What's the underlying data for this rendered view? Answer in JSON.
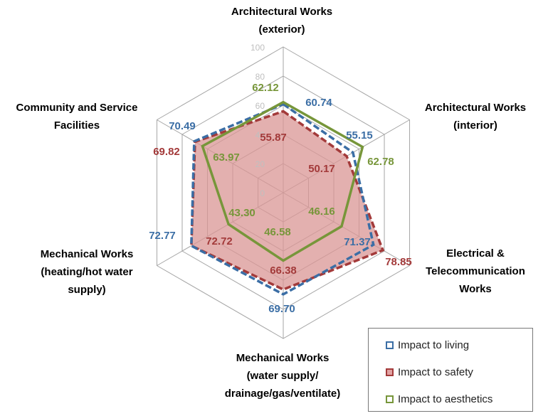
{
  "chart_data": {
    "type": "radar",
    "categories": [
      {
        "lines": [
          "Architectural Works",
          "(exterior)"
        ]
      },
      {
        "lines": [
          "Architectural Works",
          "(interior)"
        ]
      },
      {
        "lines": [
          "Electrical &",
          "Telecommunication",
          "Works"
        ]
      },
      {
        "lines": [
          "Mechanical Works",
          "(water supply/",
          "drainage/gas/ventilate)"
        ]
      },
      {
        "lines": [
          "Mechanical Works",
          "(heating/hot water",
          "supply)"
        ]
      },
      {
        "lines": [
          "Community and Service",
          "Facilities"
        ]
      }
    ],
    "rlim": [
      0,
      100
    ],
    "ticks": [
      "0",
      "20",
      "40",
      "60",
      "80",
      "100"
    ],
    "series": [
      {
        "name": "Impact to living",
        "color": "#3b6ea5",
        "style": "dashed",
        "values": [
          60.74,
          55.15,
          71.37,
          69.7,
          72.77,
          70.49
        ],
        "labels": [
          "60.74",
          "55.15",
          "71.37",
          "69.70",
          "72.77",
          "70.49"
        ]
      },
      {
        "name": "Impact to safety",
        "color": "#a33a3a",
        "style": "dashed-filled",
        "values": [
          55.87,
          50.17,
          78.85,
          66.38,
          72.72,
          69.82
        ],
        "labels": [
          "55.87",
          "50.17",
          "78.85",
          "66.38",
          "72.72",
          "69.82"
        ]
      },
      {
        "name": "Impact to aesthetics",
        "color": "#77963a",
        "style": "solid",
        "values": [
          62.12,
          62.78,
          46.16,
          46.58,
          43.3,
          63.97
        ],
        "labels": [
          "62.12",
          "62.78",
          "46.16",
          "46.58",
          "43.30",
          "63.97"
        ]
      }
    ],
    "legend_position": "bottom-right"
  }
}
